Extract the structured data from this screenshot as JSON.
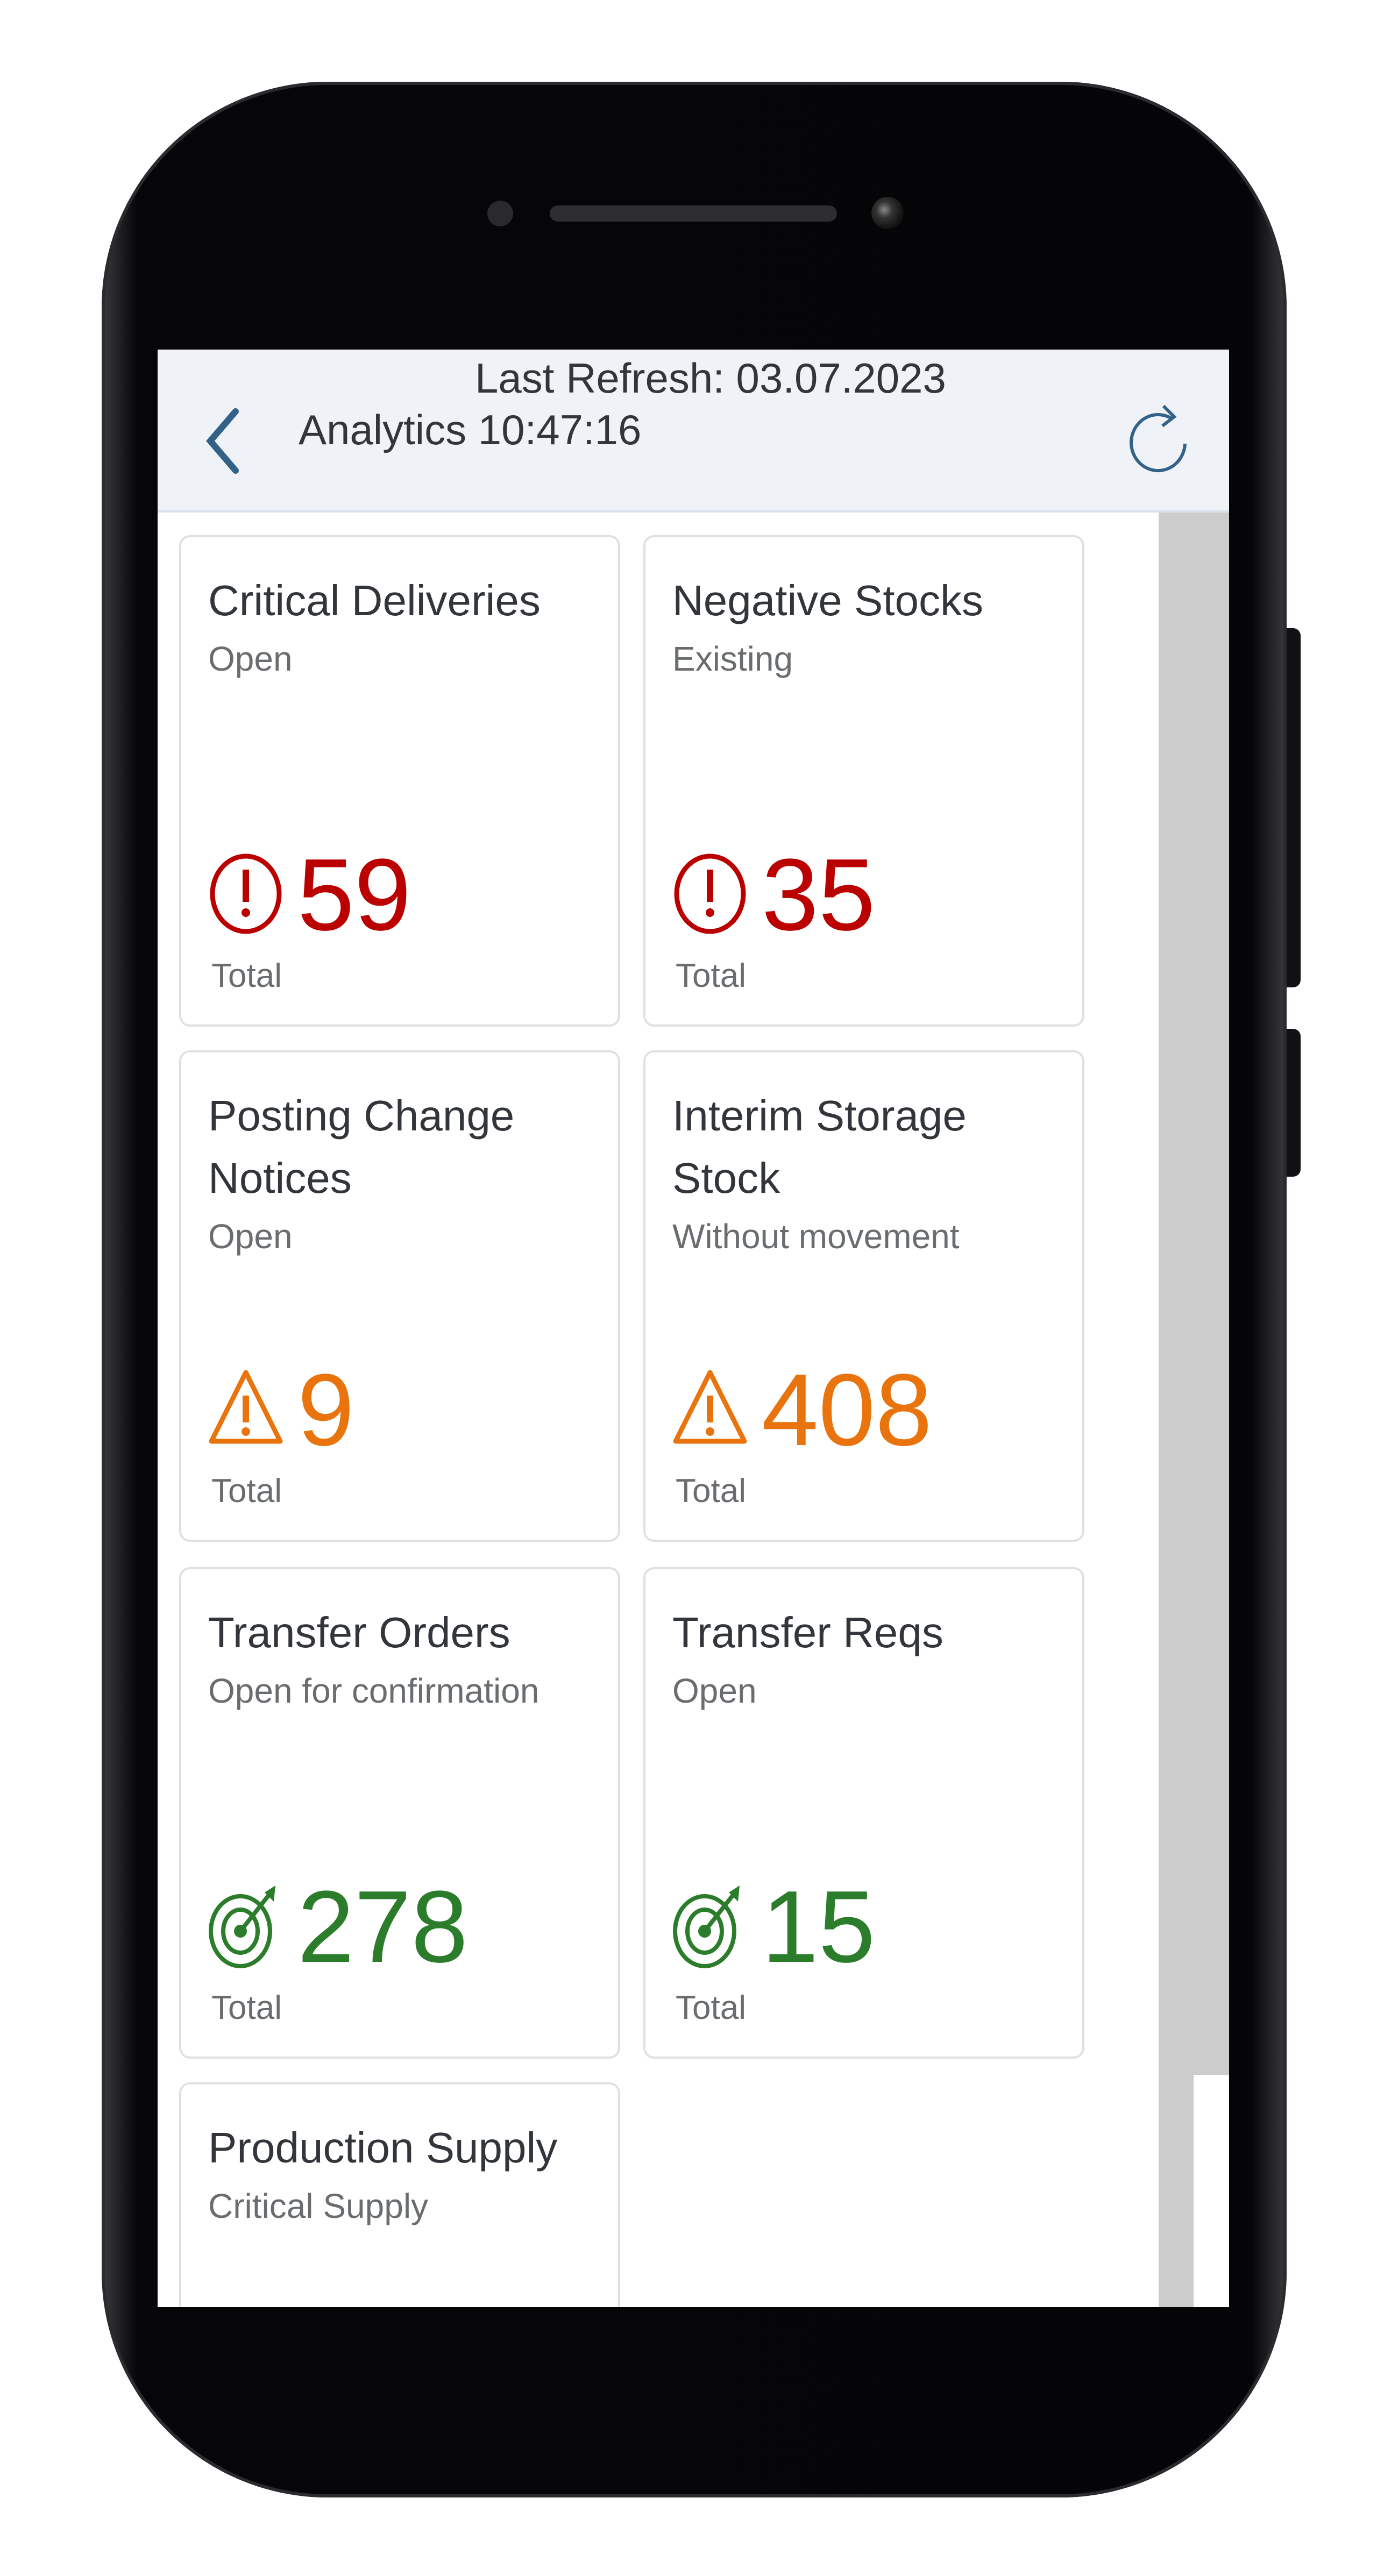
{
  "header": {
    "refresh_line1": "Last Refresh: 03.07.2023",
    "refresh_line2": "Analytics 10:47:16",
    "back_icon": "chevron-left-icon",
    "refresh_icon": "refresh-icon"
  },
  "colors": {
    "error": "#bb0000",
    "warning": "#e9730c",
    "success": "#2b7d2b",
    "accent": "#346187"
  },
  "tiles": [
    {
      "title": "Critical Deliveries",
      "subtitle": "Open",
      "value": "59",
      "unit": "Total",
      "status": "error",
      "icon": "error-circle-icon"
    },
    {
      "title": "Negative Stocks",
      "subtitle": "Existing",
      "value": "35",
      "unit": "Total",
      "status": "error",
      "icon": "error-circle-icon"
    },
    {
      "title": "Posting Change Notices",
      "subtitle": "Open",
      "value": "9",
      "unit": "Total",
      "status": "warning",
      "icon": "warning-triangle-icon"
    },
    {
      "title": "Interim Storage Stock",
      "subtitle": "Without movement",
      "value": "408",
      "unit": "Total",
      "status": "warning",
      "icon": "warning-triangle-icon"
    },
    {
      "title": "Transfer Orders",
      "subtitle": "Open for confirmation",
      "value": "278",
      "unit": "Total",
      "status": "success",
      "icon": "target-icon"
    },
    {
      "title": "Transfer Reqs",
      "subtitle": "Open",
      "value": "15",
      "unit": "Total",
      "status": "success",
      "icon": "target-icon"
    },
    {
      "title": "Production Supply",
      "subtitle": "Critical Supply",
      "value": "",
      "unit": "",
      "status": "",
      "icon": ""
    }
  ]
}
